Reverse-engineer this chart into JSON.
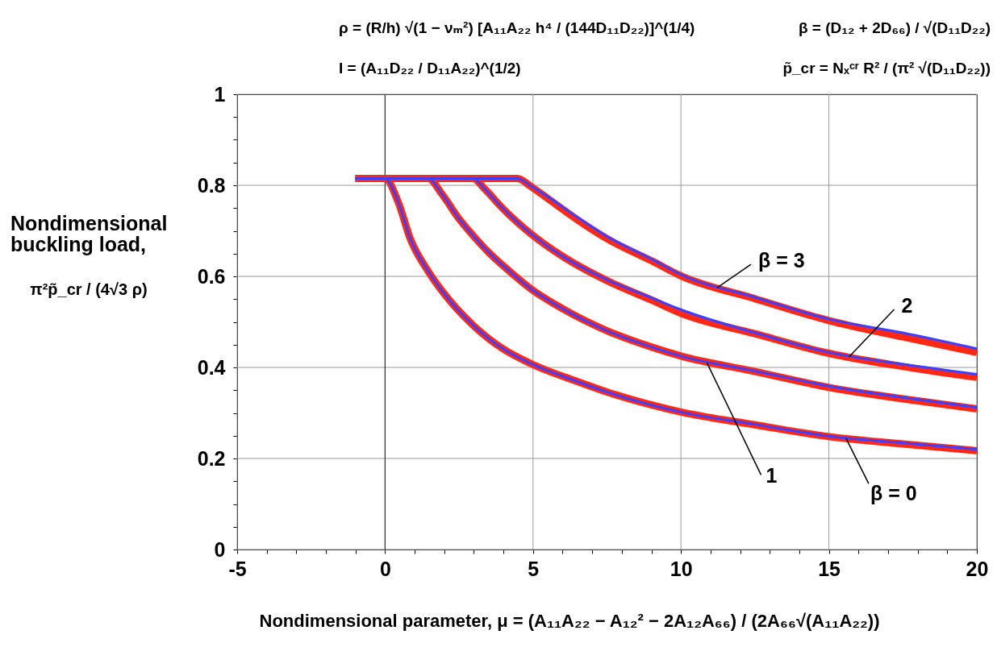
{
  "chart_data": {
    "type": "line",
    "xlabel": "Nondimensional parameter, μ = (A₁₁A₂₂ − A₁₂² − 2A₁₂A₆₆) / (2A₆₆√(A₁₁A₂₂))",
    "ylabel": "Nondimensional\nbuckling load,\nπ²p̃_cr / (4√3 ρ)",
    "xlim": [
      -5,
      20
    ],
    "ylim": [
      0,
      1
    ],
    "xticks": [
      -5,
      {
        "value": -4,
        "label": null
      },
      {
        "value": -3,
        "label": null
      },
      {
        "value": -2,
        "label": null
      },
      {
        "value": -1,
        "label": null
      },
      0,
      {
        "value": 1,
        "label": null
      },
      {
        "value": 2,
        "label": null
      },
      {
        "value": 3,
        "label": null
      },
      {
        "value": 4,
        "label": null
      },
      5,
      {
        "value": 6,
        "label": null
      },
      {
        "value": 7,
        "label": null
      },
      {
        "value": 8,
        "label": null
      },
      {
        "value": 9,
        "label": null
      },
      10,
      {
        "value": 11,
        "label": null
      },
      {
        "value": 12,
        "label": null
      },
      {
        "value": 13,
        "label": null
      },
      {
        "value": 14,
        "label": null
      },
      15,
      {
        "value": 16,
        "label": null
      },
      {
        "value": 17,
        "label": null
      },
      {
        "value": 18,
        "label": null
      },
      {
        "value": 19,
        "label": null
      },
      20
    ],
    "yticks": [
      0,
      {
        "value": 0.05,
        "label": null
      },
      {
        "value": 0.1,
        "label": null
      },
      {
        "value": 0.15,
        "label": null
      },
      0.2,
      {
        "value": 0.25,
        "label": null
      },
      {
        "value": 0.3,
        "label": null
      },
      {
        "value": 0.35,
        "label": null
      },
      0.4,
      {
        "value": 0.45,
        "label": null
      },
      {
        "value": 0.5,
        "label": null
      },
      {
        "value": 0.55,
        "label": null
      },
      0.6,
      {
        "value": 0.65,
        "label": null
      },
      {
        "value": 0.7,
        "label": null
      },
      {
        "value": 0.75,
        "label": null
      },
      0.8,
      {
        "value": 0.85,
        "label": null
      },
      {
        "value": 0.9,
        "label": null
      },
      {
        "value": 0.95,
        "label": null
      },
      1
    ],
    "grid": true,
    "line_style": "solid",
    "ref_lines": [
      {
        "axis": "x",
        "value": 0,
        "color": "#333333"
      }
    ],
    "series": [
      {
        "color": "#ff2814",
        "x": [
          -1,
          0,
          0.45,
          0.85,
          1.46,
          1.96,
          2.97,
          3.98,
          4.94,
          6.5,
          7.5,
          10,
          12.5,
          15,
          17.5,
          20
        ],
        "values": [
          0.815,
          0.815,
          0.762,
          0.683,
          0.611,
          0.565,
          0.493,
          0.441,
          0.408,
          0.369,
          0.346,
          0.302,
          0.274,
          0.248,
          0.232,
          0.217
        ]
      },
      {
        "color": "#ff2814",
        "x": [
          -1,
          1.46,
          1.91,
          2.47,
          2.97,
          3.48,
          3.98,
          4.94,
          6,
          7.52,
          9.04,
          10,
          12.5,
          15,
          17.5,
          20
        ],
        "values": [
          0.815,
          0.815,
          0.782,
          0.729,
          0.69,
          0.654,
          0.624,
          0.572,
          0.529,
          0.48,
          0.444,
          0.425,
          0.391,
          0.356,
          0.331,
          0.309
        ]
      },
      {
        "color": "#ff2814",
        "x": [
          -1,
          2.97,
          3.38,
          3.98,
          4.94,
          6,
          7.52,
          9.04,
          10,
          12.5,
          15,
          17.5,
          20
        ],
        "values": [
          0.815,
          0.815,
          0.791,
          0.749,
          0.693,
          0.644,
          0.59,
          0.547,
          0.519,
          0.474,
          0.431,
          0.402,
          0.378
        ]
      },
      {
        "color": "#ff2814",
        "x": [
          -1,
          4.47,
          4.94,
          5.5,
          6.51,
          7.52,
          9.04,
          10,
          12.5,
          15,
          17.5,
          20
        ],
        "values": [
          0.815,
          0.815,
          0.797,
          0.771,
          0.724,
          0.682,
          0.633,
          0.601,
          0.551,
          0.503,
          0.467,
          0.433
        ]
      },
      {
        "color": "#3f3fff",
        "x": [
          -1,
          0,
          0.45,
          0.85,
          1.46,
          1.96,
          2.97,
          3.98,
          4.94,
          6.5,
          7.5,
          10,
          12.5,
          15,
          17.5,
          20
        ],
        "values": [
          0.815,
          0.815,
          0.762,
          0.683,
          0.611,
          0.565,
          0.493,
          0.441,
          0.408,
          0.369,
          0.346,
          0.302,
          0.275,
          0.249,
          0.234,
          0.22
        ]
      },
      {
        "color": "#3f3fff",
        "x": [
          -1,
          1.46,
          1.91,
          2.47,
          2.97,
          3.48,
          3.98,
          4.94,
          6,
          7.52,
          9.04,
          10,
          12.5,
          15,
          17.5,
          20
        ],
        "values": [
          0.815,
          0.815,
          0.782,
          0.729,
          0.69,
          0.654,
          0.624,
          0.572,
          0.529,
          0.48,
          0.444,
          0.425,
          0.392,
          0.359,
          0.334,
          0.312
        ]
      },
      {
        "color": "#3f3fff",
        "x": [
          -1,
          2.97,
          3.38,
          3.98,
          4.94,
          6,
          7.52,
          9.04,
          10,
          12.5,
          15,
          17.5,
          20
        ],
        "values": [
          0.815,
          0.815,
          0.791,
          0.749,
          0.693,
          0.644,
          0.592,
          0.552,
          0.527,
          0.476,
          0.433,
          0.407,
          0.385
        ]
      },
      {
        "color": "#3f3fff",
        "x": [
          -1,
          4.47,
          4.94,
          5.5,
          6.51,
          7.52,
          9.04,
          10,
          12.5,
          15,
          17.5,
          20
        ],
        "values": [
          0.815,
          0.815,
          0.798,
          0.775,
          0.729,
          0.687,
          0.637,
          0.604,
          0.554,
          0.506,
          0.476,
          0.441
        ]
      }
    ],
    "annotations": [
      "ρ = (R/h) √(1 − νₘ²) [A₁₁A₂₂ h⁴ / (144D₁₁D₂₂)]^(1/4)",
      "β = (D₁₂ + 2D₆₆) / √(D₁₁D₂₂)",
      "I = (A₁₁D₂₂ / D₁₁A₂₂)^(1/2)",
      "p̃_cr = Nₓᶜʳ R² / (π² √(D₁₁D₂₂))",
      {
        "text": "β = 3",
        "x": 11.22,
        "y": 0.575
      },
      {
        "text": "2",
        "x": 15.68,
        "y": 0.423
      },
      {
        "text": "1",
        "x": 10.88,
        "y": 0.41
      },
      {
        "text": "β = 0",
        "x": 15.58,
        "y": 0.244
      }
    ]
  }
}
